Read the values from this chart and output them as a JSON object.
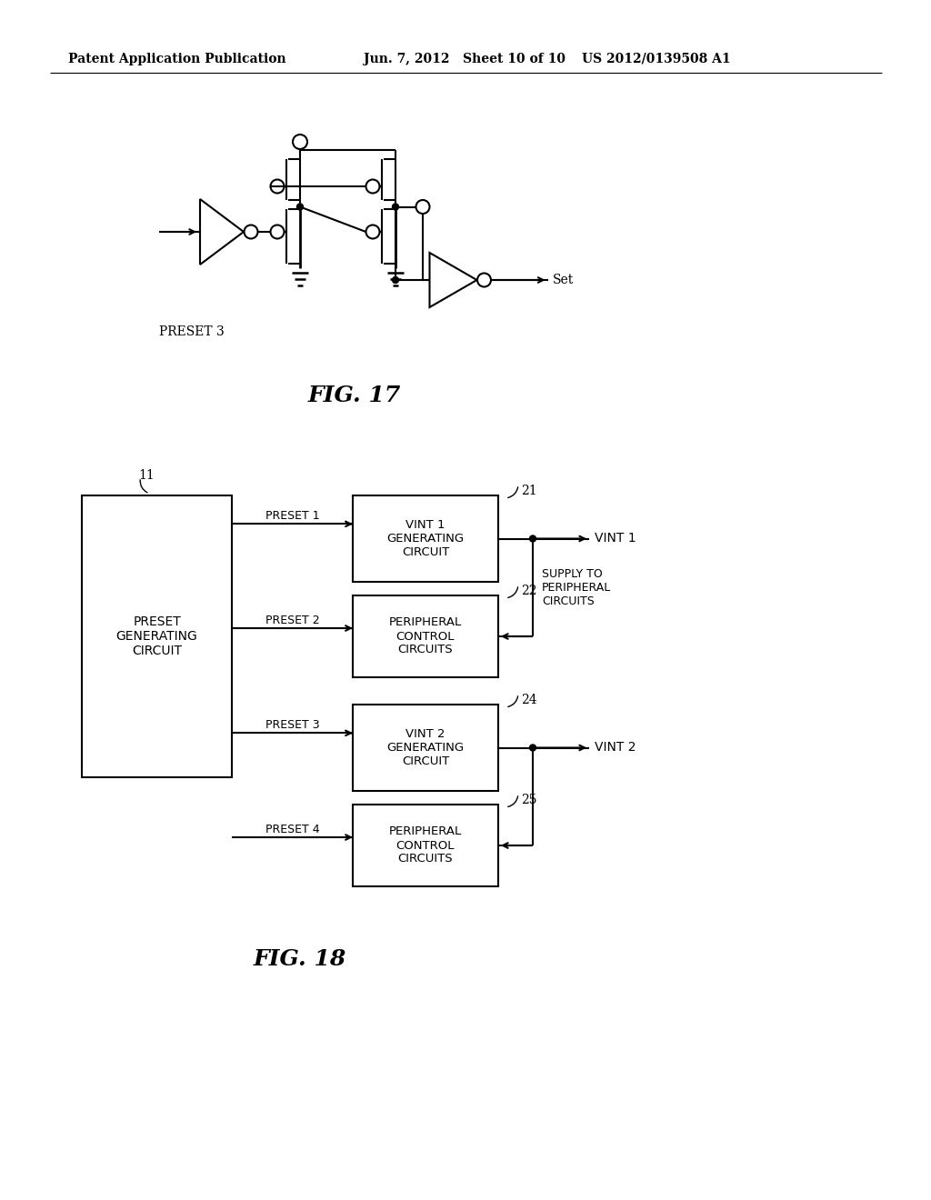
{
  "header_left": "Patent Application Publication",
  "header_mid": "Jun. 7, 2012   Sheet 10 of 10",
  "header_right": "US 2012/0139508 A1",
  "fig17_label": "FIG. 17",
  "fig18_label": "FIG. 18",
  "fig17_preset_label": "PRESET 3",
  "fig17_set_label": "Set",
  "bg_color": "#ffffff",
  "line_color": "#000000",
  "text_color": "#000000"
}
